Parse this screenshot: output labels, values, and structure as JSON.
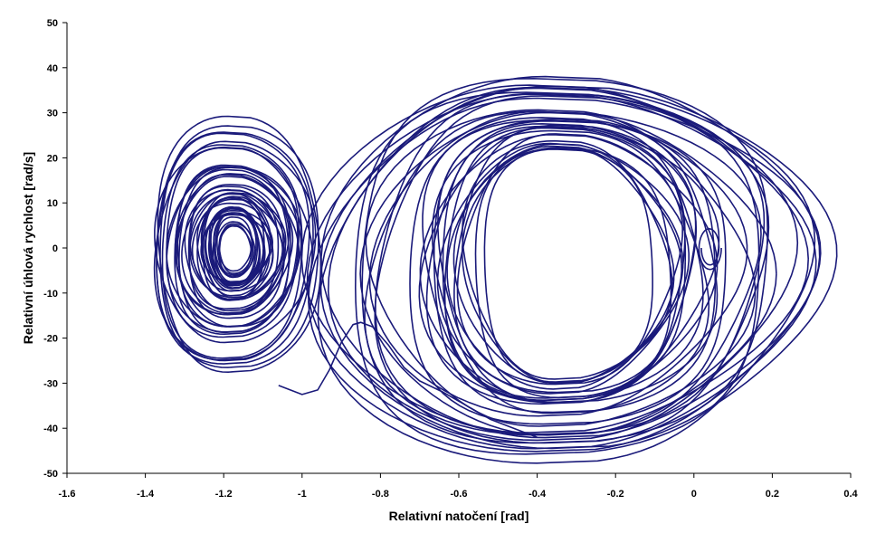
{
  "chart_data": {
    "type": "line",
    "title": "",
    "xlabel": "Relativní natočení [rad]",
    "ylabel": "Relativní úhlová rychlost [rad/s]",
    "xlim": [
      -1.6,
      0.4
    ],
    "ylim": [
      -50,
      50
    ],
    "xticks": [
      "-1.6",
      "-1.4",
      "-1.2",
      "-1",
      "-0.8",
      "-0.6",
      "-0.4",
      "-0.2",
      "0",
      "0.2",
      "0.4"
    ],
    "yticks": [
      "50",
      "40",
      "30",
      "20",
      "10",
      "0",
      "-10",
      "-20",
      "-30",
      "-40",
      "-50"
    ],
    "grid": false,
    "legend": "none",
    "line_color": "#1a1a7a",
    "series": [
      {
        "attractors": [
          {
            "center": [
              -1.17,
              0
            ],
            "max_radius": [
              0.22,
              28
            ],
            "min_radius": [
              0.08,
              7
            ]
          },
          {
            "center": [
              -0.32,
              -4
            ],
            "max_radius": [
              0.62,
              42
            ],
            "min_radius": [
              0.2,
              24
            ]
          }
        ],
        "transition": {
          "x": [
            -1.06,
            -1.0,
            -0.96,
            -0.93,
            -0.9,
            -0.87,
            -0.85,
            -0.82,
            -0.78,
            -0.74,
            -0.7,
            -0.64,
            -0.58,
            -0.52,
            -0.46,
            -0.4
          ],
          "y": [
            -30.5,
            -32.5,
            -31.5,
            -27,
            -21,
            -17,
            -16.5,
            -17.5,
            -21.5,
            -26.5,
            -29.5,
            -32,
            -35,
            -38,
            -40,
            -42
          ]
        },
        "small_loop": {
          "center": [
            0.04,
            0
          ],
          "radius": [
            0.03,
            5
          ]
        }
      }
    ]
  }
}
